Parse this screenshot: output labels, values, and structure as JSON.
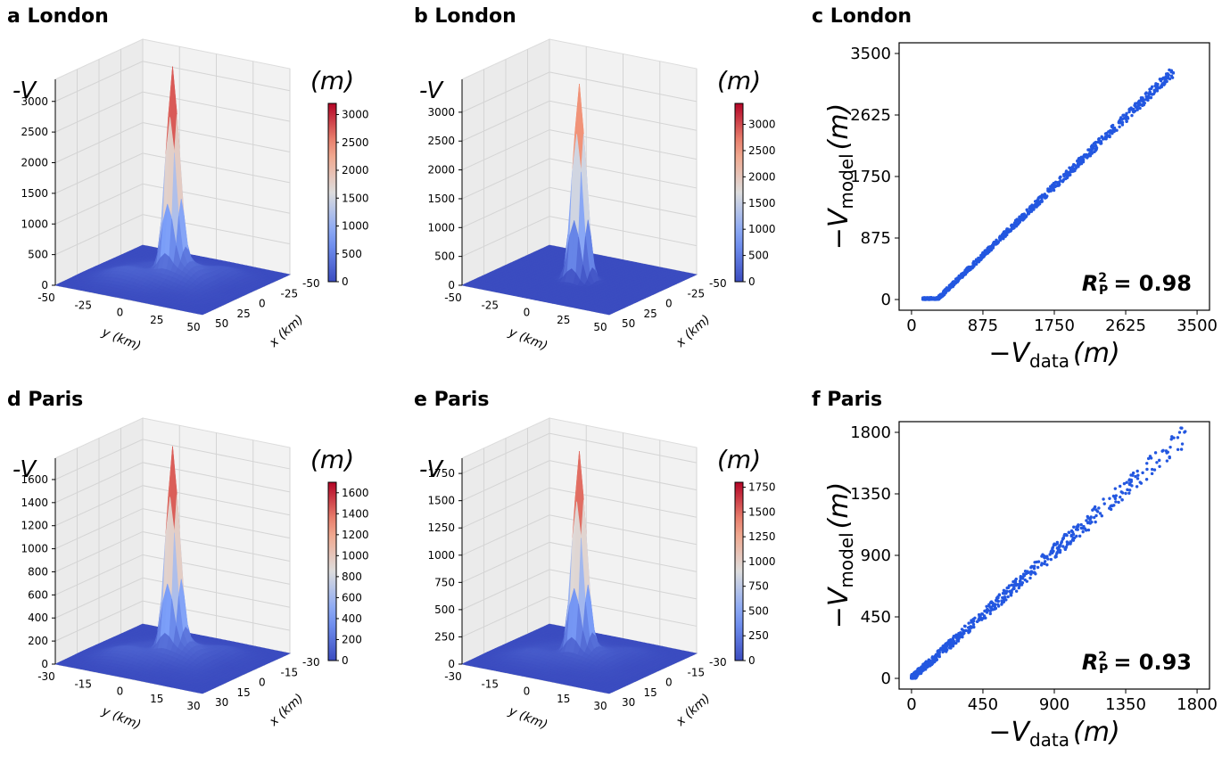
{
  "chart_data": [
    {
      "panel": "a",
      "city": "London",
      "label": "a London",
      "type": "surface",
      "zlabel": "-V",
      "unit": "(m)",
      "xlabel": "x  (km)",
      "ylabel": "y  (km)",
      "x_ticks": [
        "-50",
        "-25",
        "0",
        "25",
        "50"
      ],
      "y_ticks": [
        "-50",
        "-25",
        "0",
        "25",
        "50"
      ],
      "z_ticks": [
        "0",
        "500",
        "1000",
        "1500",
        "2000",
        "2500",
        "3000"
      ],
      "colorbar_ticks": [
        "0",
        "500",
        "1000",
        "1500",
        "2000",
        "2500",
        "3000"
      ],
      "zmax": 3200,
      "peak": 3200,
      "baseline": 400,
      "colormap": "coolwarm"
    },
    {
      "panel": "b",
      "city": "London",
      "label": "b London",
      "type": "surface",
      "zlabel": "-V",
      "unit": "(m)",
      "xlabel": "x  (km)",
      "ylabel": "y  (km)",
      "x_ticks": [
        "-50",
        "-25",
        "0",
        "25",
        "50"
      ],
      "y_ticks": [
        "-50",
        "-25",
        "0",
        "25",
        "50"
      ],
      "z_ticks": [
        "0",
        "500",
        "1000",
        "1500",
        "2000",
        "2500",
        "3000"
      ],
      "colorbar_ticks": [
        "0",
        "500",
        "1000",
        "1500",
        "2000",
        "2500",
        "3000"
      ],
      "zmax": 3400,
      "peak": 3400,
      "baseline": 0,
      "colormap": "coolwarm"
    },
    {
      "panel": "c",
      "city": "London",
      "label": "c London",
      "type": "scatter",
      "xlabel_main": "−V",
      "xlabel_sub": "data",
      "xlabel_unit": "(m)",
      "ylabel_main": "−V",
      "ylabel_sub": "model",
      "ylabel_unit": "(m)",
      "x_ticks": [
        "0",
        "875",
        "1750",
        "2625",
        "3500"
      ],
      "y_ticks": [
        "0",
        "875",
        "1750",
        "2625",
        "3500"
      ],
      "xlim": [
        0,
        3500
      ],
      "ylim": [
        0,
        3500
      ],
      "r2_label": "R",
      "r2_sub": "P",
      "r2_sup": "2",
      "r2_value": "= 0.98",
      "color": "#2357e0"
    },
    {
      "panel": "d",
      "city": "Paris",
      "label": "d Paris",
      "type": "surface",
      "zlabel": "-V",
      "unit": "(m)",
      "xlabel": "x  (km)",
      "ylabel": "y  (km)",
      "x_ticks": [
        "-30",
        "-15",
        "0",
        "15",
        "30"
      ],
      "y_ticks": [
        "-30",
        "-15",
        "0",
        "15",
        "30"
      ],
      "z_ticks": [
        "0",
        "200",
        "400",
        "600",
        "800",
        "1000",
        "1200",
        "1400",
        "1600"
      ],
      "colorbar_ticks": [
        "0",
        "200",
        "400",
        "600",
        "800",
        "1000",
        "1200",
        "1400",
        "1600"
      ],
      "zmax": 1700,
      "peak": 1700,
      "baseline": 200,
      "colormap": "coolwarm"
    },
    {
      "panel": "e",
      "city": "Paris",
      "label": "e Paris",
      "type": "surface",
      "zlabel": "-V",
      "unit": "(m)",
      "xlabel": "x  (km)",
      "ylabel": "y  (km)",
      "x_ticks": [
        "-30",
        "-15",
        "0",
        "15",
        "30"
      ],
      "y_ticks": [
        "-30",
        "-15",
        "0",
        "15",
        "30"
      ],
      "z_ticks": [
        "0",
        "250",
        "500",
        "750",
        "1000",
        "1250",
        "1500",
        "1750"
      ],
      "colorbar_ticks": [
        "0",
        "250",
        "500",
        "750",
        "1000",
        "1250",
        "1500",
        "1750"
      ],
      "zmax": 1800,
      "peak": 1800,
      "baseline": 150,
      "colormap": "coolwarm"
    },
    {
      "panel": "f",
      "city": "Paris",
      "label": "f Paris",
      "type": "scatter",
      "xlabel_main": "−V",
      "xlabel_sub": "data",
      "xlabel_unit": "(m)",
      "ylabel_main": "−V",
      "ylabel_sub": "model",
      "ylabel_unit": "(m)",
      "x_ticks": [
        "0",
        "450",
        "900",
        "1350",
        "1800"
      ],
      "y_ticks": [
        "0",
        "450",
        "900",
        "1350",
        "1800"
      ],
      "xlim": [
        0,
        1800
      ],
      "ylim": [
        0,
        1800
      ],
      "r2_label": "R",
      "r2_sub": "P",
      "r2_sup": "2",
      "r2_value": "= 0.93",
      "color": "#2357e0"
    }
  ]
}
